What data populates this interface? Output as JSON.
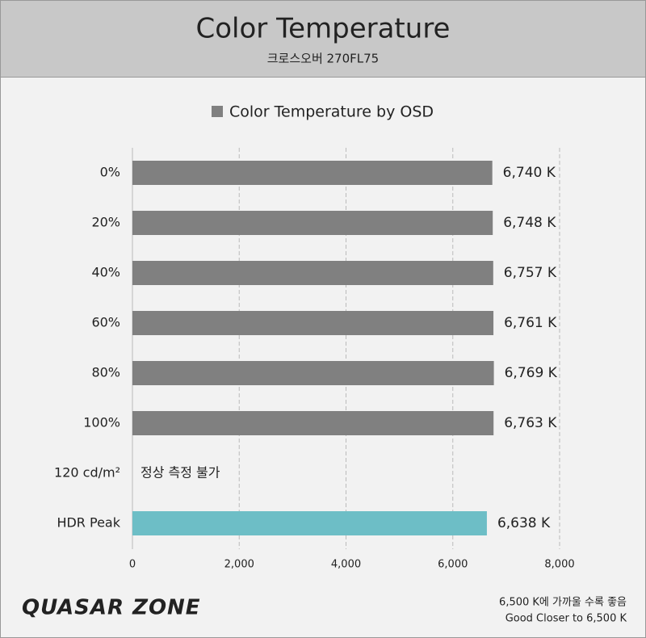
{
  "header": {
    "title": "Color Temperature",
    "subtitle": "크로스오버 270FL75"
  },
  "chart_data": {
    "type": "bar",
    "orientation": "horizontal",
    "categories": [
      "0%",
      "20%",
      "40%",
      "60%",
      "80%",
      "100%",
      "120 cd/m²",
      "HDR Peak"
    ],
    "series": [
      {
        "name": "Color Temperature by OSD",
        "color": "#808080",
        "values": [
          6740,
          6748,
          6757,
          6761,
          6769,
          6763,
          null,
          6638
        ],
        "value_labels": [
          "6,740 K",
          "6,748 K",
          "6,757 K",
          "6,761 K",
          "6,769 K",
          "6,763 K",
          null,
          "6,638 K"
        ],
        "colors": [
          "#808080",
          "#808080",
          "#808080",
          "#808080",
          "#808080",
          "#808080",
          null,
          "#6dbec6"
        ]
      }
    ],
    "annotation": "정상 측정 불가",
    "xlim": [
      0,
      8000
    ],
    "xticks": [
      0,
      {
        "value": 2000,
        "label": "2,000"
      },
      {
        "value": 4000,
        "label": "4,000"
      },
      {
        "value": 6000,
        "label": "6,000"
      },
      {
        "value": 8000,
        "label": "8,000"
      }
    ],
    "grid": true,
    "legend": "top"
  },
  "footer": {
    "logo": "QUASAR ZONE",
    "notes": [
      "6,500 K에 가까울 수록 좋음",
      "Good Closer to 6,500 K"
    ]
  }
}
